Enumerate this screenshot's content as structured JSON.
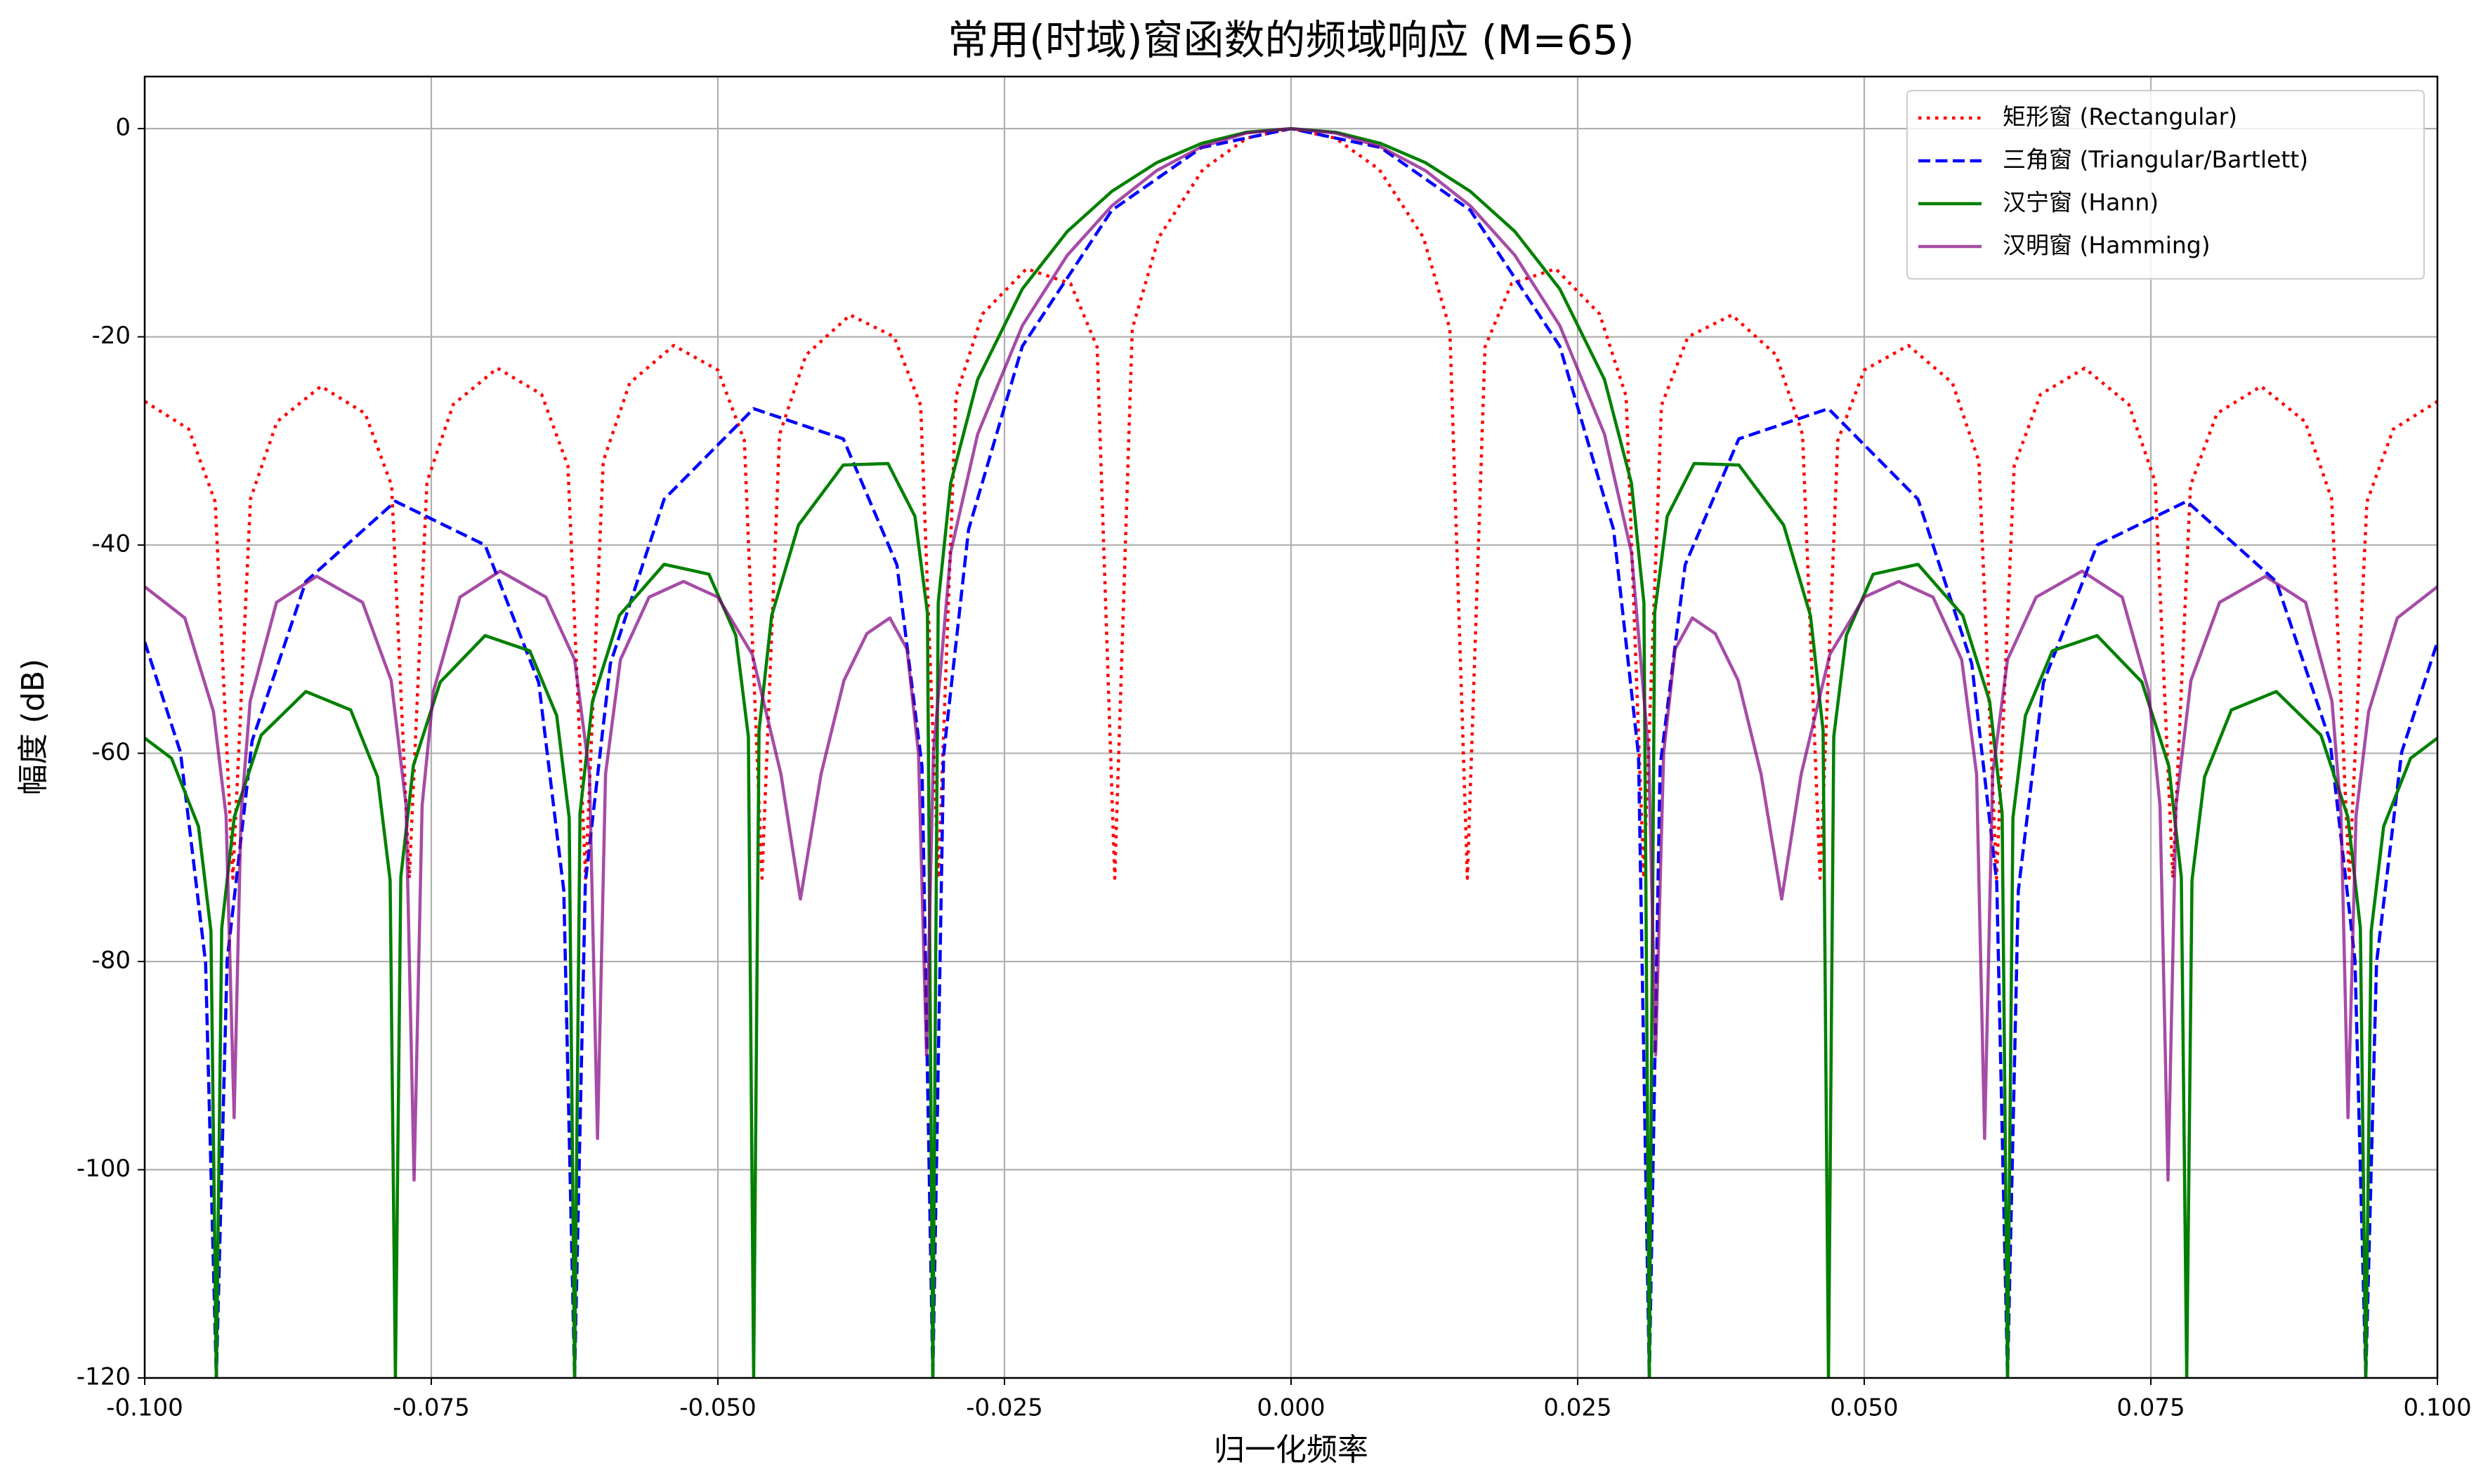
{
  "chart_data": {
    "type": "line",
    "title": "常用(时域)窗函数的频域响应 (M=65)",
    "x_label": "归一化频率",
    "y_label": "幅度 (dB)",
    "xlim": [
      -0.1,
      0.1
    ],
    "xticks": [
      {
        "value": -0.1,
        "label": "-0.100"
      },
      -0.075,
      {
        "value": -0.05,
        "label": "-0.050"
      },
      -0.025,
      {
        "value": 0,
        "label": "0.000"
      },
      0.025,
      {
        "value": 0.05,
        "label": "0.050"
      },
      0.075,
      {
        "value": 0.1,
        "label": "0.100"
      }
    ],
    "ylim": [
      -120,
      5
    ],
    "yticks": [
      -120,
      -100,
      -80,
      -60,
      -40,
      -20,
      0
    ],
    "grid": true,
    "legend": "upper right",
    "series": [
      {
        "name": "矩形窗 (Rectangular)",
        "color": "#ff0000",
        "linestyle": "dotted",
        "alpha": 1,
        "x": [
          -0.1,
          -0.09615,
          -0.09385,
          -0.09231,
          -0.09077,
          -0.08846,
          -0.08462,
          -0.08077,
          -0.07846,
          -0.07692,
          -0.07538,
          -0.07308,
          -0.06923,
          -0.06538,
          -0.06308,
          -0.06154,
          -0.06,
          -0.05769,
          -0.05385,
          -0.05,
          -0.04769,
          -0.04615,
          -0.04462,
          -0.04231,
          -0.03846,
          -0.03462,
          -0.03231,
          -0.03077,
          -0.02923,
          -0.02692,
          -0.02308,
          -0.01923,
          -0.01692,
          -0.01538,
          -0.01385,
          -0.01154,
          -0.00769,
          -0.00385,
          0,
          0.00385,
          0.00769,
          0.01154,
          0.01385,
          0.01538,
          0.01692,
          0.01923,
          0.02308,
          0.02692,
          0.02923,
          0.03077,
          0.03231,
          0.03462,
          0.03846,
          0.04231,
          0.04462,
          0.04615,
          0.04769,
          0.05,
          0.05385,
          0.05769,
          0.06,
          0.06154,
          0.06308,
          0.06538,
          0.06923,
          0.07308,
          0.07538,
          0.07692,
          0.07846,
          0.08077,
          0.08462,
          0.08846,
          0.09077,
          0.09231,
          0.09385,
          0.09615,
          0.1
        ],
        "values": [
          -26.2,
          -28.87,
          -35.85,
          -72,
          -35.56,
          -28.15,
          -24.75,
          -27.36,
          -34.29,
          -72,
          -33.95,
          -26.49,
          -23.01,
          -25.52,
          -32.4,
          -72,
          -31.96,
          -24.43,
          -20.83,
          -23.19,
          -29.97,
          -72,
          -29.39,
          -21.74,
          -17.9,
          -20.0,
          -26.59,
          -72,
          -25.72,
          -17.81,
          -13.46,
          -14.89,
          -20.97,
          -72,
          -19.22,
          -10.45,
          -3.92,
          -0.91,
          0,
          -0.91,
          -3.92,
          -10.45,
          -19.22,
          -72,
          -20.97,
          -14.89,
          -13.46,
          -17.81,
          -25.72,
          -72,
          -26.59,
          -20.0,
          -17.9,
          -21.74,
          -29.39,
          -72,
          -29.97,
          -23.19,
          -20.83,
          -24.43,
          -31.96,
          -72,
          -32.4,
          -25.52,
          -23.01,
          -26.49,
          -33.95,
          -72,
          -34.29,
          -27.36,
          -24.75,
          -28.15,
          -35.56,
          -72,
          -35.85,
          -28.87,
          -26.2
        ]
      },
      {
        "name": "三角窗 (Triangular/Bartlett)",
        "color": "#0000ff",
        "linestyle": "dashed",
        "alpha": 1,
        "x": [
          -0.1,
          -0.09688,
          -0.09469,
          -0.09375,
          -0.09281,
          -0.09063,
          -0.08594,
          -0.07813,
          -0.07031,
          -0.06563,
          -0.06344,
          -0.0625,
          -0.06156,
          -0.05938,
          -0.05469,
          -0.04688,
          -0.03906,
          -0.03438,
          -0.03219,
          -0.03125,
          -0.03031,
          -0.02813,
          -0.02344,
          -0.01563,
          -0.00781,
          0,
          0.00781,
          0.01563,
          0.02344,
          0.02813,
          0.03031,
          0.03125,
          0.03219,
          0.03438,
          0.03906,
          0.04688,
          0.05469,
          0.05938,
          0.06156,
          0.0625,
          0.06344,
          0.06563,
          0.07031,
          0.07813,
          0.08594,
          0.09063,
          0.09281,
          0.09375,
          0.09469,
          0.09688,
          0.1
        ],
        "values": [
          -49.3,
          -59.9,
          -80.1,
          -120,
          -79.9,
          -58.8,
          -43.5,
          -35.8,
          -40.0,
          -53.2,
          -73.2,
          -120,
          -72.4,
          -51.4,
          -35.6,
          -26.9,
          -29.8,
          -41.9,
          -61.3,
          -120,
          -60.2,
          -38.5,
          -20.9,
          -7.84,
          -1.82,
          0,
          -1.82,
          -7.84,
          -20.9,
          -38.5,
          -60.2,
          -120,
          -61.3,
          -41.9,
          -29.8,
          -26.9,
          -35.6,
          -51.4,
          -72.4,
          -120,
          -73.2,
          -53.2,
          -40.0,
          -35.8,
          -43.5,
          -58.8,
          -79.9,
          -120,
          -80.1,
          -59.9,
          -49.3
        ]
      },
      {
        "name": "汉宁窗 (Hann)",
        "color": "#008000",
        "linestyle": "solid",
        "alpha": 1,
        "x": [
          -0.1,
          -0.09766,
          -0.09531,
          -0.09422,
          -0.09375,
          -0.09328,
          -0.09219,
          -0.08984,
          -0.08594,
          -0.08203,
          -0.07969,
          -0.07859,
          -0.07813,
          -0.07766,
          -0.07656,
          -0.07422,
          -0.07031,
          -0.06641,
          -0.06406,
          -0.06297,
          -0.0625,
          -0.06203,
          -0.06094,
          -0.05859,
          -0.05469,
          -0.05078,
          -0.04844,
          -0.04734,
          -0.04688,
          -0.04641,
          -0.04531,
          -0.04297,
          -0.03906,
          -0.03516,
          -0.03281,
          -0.03172,
          -0.03125,
          -0.03078,
          -0.02969,
          -0.02734,
          -0.02344,
          -0.01953,
          -0.01563,
          -0.01172,
          -0.00781,
          -0.00391,
          0,
          0.00391,
          0.00781,
          0.01172,
          0.01563,
          0.01953,
          0.02344,
          0.02734,
          0.02969,
          0.03078,
          0.03125,
          0.03172,
          0.03281,
          0.03516,
          0.03906,
          0.04297,
          0.04531,
          0.04641,
          0.04688,
          0.04734,
          0.04844,
          0.05078,
          0.05469,
          0.05859,
          0.06094,
          0.06203,
          0.0625,
          0.06297,
          0.06406,
          0.06641,
          0.07031,
          0.07422,
          0.07656,
          0.07766,
          0.07813,
          0.07859,
          0.07969,
          0.08203,
          0.08594,
          0.08984,
          0.09219,
          0.09328,
          0.09375,
          0.09422,
          0.09531,
          0.09766,
          0.1
        ],
        "values": [
          -58.54,
          -60.48,
          -67.02,
          -77.1,
          -120,
          -76.8,
          -66.14,
          -58.26,
          -54.07,
          -55.84,
          -62.26,
          -72.2,
          -120,
          -71.9,
          -61.18,
          -53.16,
          -48.7,
          -50.16,
          -56.38,
          -66.2,
          -120,
          -65.8,
          -55.02,
          -46.75,
          -41.85,
          -42.8,
          -48.67,
          -58.4,
          -120,
          -57.8,
          -46.79,
          -38.08,
          -32.31,
          -32.17,
          -37.24,
          -46.5,
          -120,
          -45.55,
          -34.05,
          -24.1,
          -15.4,
          -9.89,
          -6.02,
          -3.27,
          -1.42,
          -0.35,
          0,
          -0.35,
          -1.42,
          -3.27,
          -6.02,
          -9.89,
          -15.4,
          -24.1,
          -34.05,
          -45.55,
          -120,
          -46.5,
          -37.24,
          -32.17,
          -32.31,
          -38.08,
          -46.79,
          -57.8,
          -120,
          -58.4,
          -48.67,
          -42.8,
          -41.85,
          -46.75,
          -55.02,
          -65.8,
          -120,
          -66.2,
          -56.38,
          -50.16,
          -48.7,
          -53.16,
          -61.18,
          -71.9,
          -120,
          -72.2,
          -62.26,
          -55.84,
          -54.07,
          -58.26,
          -66.14,
          -76.8,
          -120,
          -77.1,
          -67.02,
          -60.48,
          -58.54
        ]
      },
      {
        "name": "汉明窗 (Hamming)",
        "color": "#800080",
        "linestyle": "solid",
        "alpha": 0.7,
        "x": [
          -0.1,
          -0.0965,
          -0.094,
          -0.0929,
          -0.0922,
          -0.0916,
          -0.0908,
          -0.0885,
          -0.085,
          -0.081,
          -0.0785,
          -0.0772,
          -0.0765,
          -0.0758,
          -0.0748,
          -0.0725,
          -0.069,
          -0.065,
          -0.0625,
          -0.0612,
          -0.0605,
          -0.0598,
          -0.0585,
          -0.056,
          -0.053,
          -0.05,
          -0.047,
          -0.0445,
          -0.0428,
          -0.041,
          -0.039,
          -0.037,
          -0.035,
          -0.0335,
          -0.0325,
          -0.0318,
          -0.0312,
          -0.02969,
          -0.02734,
          -0.02344,
          -0.01953,
          -0.01563,
          -0.01172,
          -0.00781,
          -0.00391,
          0,
          0.00391,
          0.00781,
          0.01172,
          0.01563,
          0.01953,
          0.02344,
          0.02734,
          0.02969,
          0.0312,
          0.0318,
          0.0325,
          0.0335,
          0.035,
          0.037,
          0.039,
          0.041,
          0.0428,
          0.0445,
          0.047,
          0.05,
          0.053,
          0.056,
          0.0585,
          0.0598,
          0.0605,
          0.0612,
          0.0625,
          0.065,
          0.069,
          0.0725,
          0.0748,
          0.0758,
          0.0765,
          0.0772,
          0.0785,
          0.081,
          0.085,
          0.0885,
          0.0908,
          0.0916,
          0.0922,
          0.0929,
          0.094,
          0.0965,
          0.1
        ],
        "values": [
          -44,
          -47,
          -56,
          -66,
          -95,
          -66,
          -55,
          -45.5,
          -43,
          -45.5,
          -53,
          -65,
          -101,
          -65,
          -54,
          -45,
          -42.5,
          -45,
          -51,
          -62,
          -97,
          -62,
          -51,
          -45,
          -43.5,
          -45,
          -50.5,
          -62,
          -74,
          -62,
          -53,
          -48.5,
          -47,
          -50,
          -60,
          -89,
          -60,
          -40.7,
          -29.35,
          -18.92,
          -12.18,
          -7.41,
          -4.03,
          -1.75,
          -0.43,
          0,
          -0.43,
          -1.75,
          -4.03,
          -7.41,
          -12.18,
          -18.92,
          -29.35,
          -40.7,
          -60,
          -89,
          -60,
          -50,
          -47,
          -48.5,
          -53,
          -62,
          -74,
          -62,
          -50.5,
          -45,
          -43.5,
          -45,
          -51,
          -62,
          -97,
          -62,
          -51,
          -45,
          -42.5,
          -45,
          -54,
          -65,
          -101,
          -65,
          -53,
          -45.5,
          -43,
          -45.5,
          -55,
          -66,
          -95,
          -66,
          -56,
          -47,
          -44
        ]
      }
    ]
  }
}
